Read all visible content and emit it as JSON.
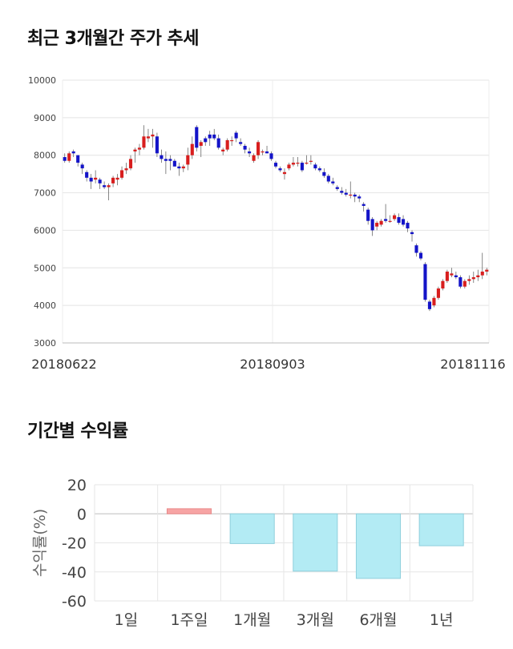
{
  "titles": {
    "price_trend": "최근 3개월간 주가 추세",
    "returns": "기간별 수익률"
  },
  "colors": {
    "up": "#d81e1e",
    "down": "#1414c8",
    "positive_bar": "#f7a4a4",
    "negative_bar": "#b3ebf4",
    "negative_bar_edge": "#8fcfdc"
  },
  "chart_data": [
    {
      "type": "candlestick",
      "title": "최근 3개월간 주가 추세",
      "ylim": [
        3000,
        10000
      ],
      "yticks": [
        3000,
        4000,
        5000,
        6000,
        7000,
        8000,
        9000,
        10000
      ],
      "xtick_labels": [
        "20180622",
        "20180903",
        "20181116"
      ],
      "grid": true,
      "ohlc": [
        [
          7950,
          8050,
          7800,
          7850
        ],
        [
          7850,
          8100,
          7800,
          8050
        ],
        [
          8100,
          8150,
          7950,
          8050
        ],
        [
          8000,
          8000,
          7700,
          7800
        ],
        [
          7750,
          7800,
          7500,
          7650
        ],
        [
          7550,
          7600,
          7300,
          7400
        ],
        [
          7400,
          7500,
          7100,
          7300
        ],
        [
          7350,
          7600,
          7250,
          7400
        ],
        [
          7350,
          7400,
          7100,
          7250
        ],
        [
          7200,
          7300,
          7100,
          7150
        ],
        [
          7150,
          7250,
          6800,
          7200
        ],
        [
          7250,
          7450,
          7150,
          7400
        ],
        [
          7350,
          7500,
          7200,
          7400
        ],
        [
          7400,
          7700,
          7350,
          7600
        ],
        [
          7600,
          7800,
          7500,
          7650
        ],
        [
          7650,
          8000,
          7600,
          7900
        ],
        [
          8100,
          8200,
          7800,
          8150
        ],
        [
          8150,
          8300,
          8000,
          8200
        ],
        [
          8200,
          8800,
          8150,
          8500
        ],
        [
          8450,
          8700,
          8350,
          8500
        ],
        [
          8500,
          8700,
          8200,
          8550
        ],
        [
          8500,
          8600,
          7950,
          8050
        ],
        [
          8000,
          8150,
          7800,
          7900
        ],
        [
          7900,
          8100,
          7500,
          7850
        ],
        [
          7900,
          8000,
          7600,
          7850
        ],
        [
          7850,
          7900,
          7700,
          7700
        ],
        [
          7700,
          7800,
          7450,
          7650
        ],
        [
          7650,
          7750,
          7550,
          7700
        ],
        [
          7750,
          8200,
          7600,
          8000
        ],
        [
          8000,
          8500,
          7900,
          8300
        ],
        [
          8750,
          8800,
          8100,
          8200
        ],
        [
          8250,
          8400,
          7950,
          8350
        ],
        [
          8450,
          8500,
          8250,
          8350
        ],
        [
          8550,
          8650,
          8250,
          8450
        ],
        [
          8550,
          8700,
          8400,
          8450
        ],
        [
          8450,
          8550,
          8150,
          8200
        ],
        [
          8100,
          8200,
          8000,
          8150
        ],
        [
          8150,
          8450,
          8100,
          8400
        ],
        [
          8400,
          8500,
          8250,
          8400
        ],
        [
          8600,
          8650,
          8350,
          8450
        ],
        [
          8350,
          8450,
          8250,
          8300
        ],
        [
          8250,
          8300,
          8050,
          8150
        ],
        [
          8100,
          8200,
          7950,
          8050
        ],
        [
          7850,
          8050,
          7800,
          8000
        ],
        [
          8000,
          8400,
          7900,
          8350
        ],
        [
          8100,
          8150,
          8000,
          8100
        ],
        [
          8100,
          8250,
          8050,
          8050
        ],
        [
          8050,
          8100,
          7850,
          7900
        ],
        [
          7800,
          7850,
          7650,
          7700
        ],
        [
          7650,
          7700,
          7550,
          7600
        ],
        [
          7500,
          7650,
          7350,
          7550
        ],
        [
          7650,
          7800,
          7600,
          7750
        ],
        [
          7750,
          7950,
          7700,
          7800
        ],
        [
          7800,
          7950,
          7700,
          7800
        ],
        [
          7800,
          7850,
          7550,
          7600
        ],
        [
          7800,
          8000,
          7750,
          7800
        ],
        [
          7850,
          8000,
          7750,
          7850
        ],
        [
          7750,
          7800,
          7600,
          7650
        ],
        [
          7650,
          7700,
          7550,
          7600
        ],
        [
          7550,
          7650,
          7400,
          7450
        ],
        [
          7450,
          7500,
          7250,
          7300
        ],
        [
          7300,
          7400,
          7200,
          7250
        ],
        [
          7150,
          7200,
          7050,
          7100
        ],
        [
          7050,
          7150,
          6950,
          7000
        ],
        [
          7000,
          7100,
          6900,
          6950
        ],
        [
          6950,
          7300,
          6850,
          6950
        ],
        [
          6950,
          7000,
          6750,
          6900
        ],
        [
          6900,
          6950,
          6750,
          6850
        ],
        [
          6700,
          6750,
          6500,
          6650
        ],
        [
          6550,
          6600,
          6150,
          6250
        ],
        [
          6300,
          6350,
          5850,
          6000
        ],
        [
          6100,
          6250,
          6000,
          6200
        ],
        [
          6150,
          6300,
          6100,
          6250
        ],
        [
          6300,
          6700,
          6200,
          6250
        ],
        [
          6250,
          6400,
          6200,
          6250
        ],
        [
          6300,
          6450,
          6250,
          6400
        ],
        [
          6350,
          6450,
          6150,
          6200
        ],
        [
          6300,
          6400,
          6100,
          6150
        ],
        [
          6200,
          6250,
          5950,
          6050
        ],
        [
          5950,
          6000,
          5700,
          5900
        ],
        [
          5600,
          5650,
          5300,
          5400
        ],
        [
          5400,
          5450,
          5200,
          5250
        ],
        [
          5100,
          5150,
          4100,
          4150
        ],
        [
          4100,
          4150,
          3850,
          3900
        ],
        [
          4000,
          4250,
          3950,
          4200
        ],
        [
          4200,
          4500,
          4150,
          4450
        ],
        [
          4450,
          4700,
          4400,
          4650
        ],
        [
          4650,
          4950,
          4600,
          4900
        ],
        [
          4800,
          5000,
          4750,
          4850
        ],
        [
          4800,
          4900,
          4700,
          4750
        ],
        [
          4750,
          4800,
          4450,
          4500
        ],
        [
          4500,
          4700,
          4450,
          4650
        ],
        [
          4650,
          4800,
          4550,
          4700
        ],
        [
          4700,
          4900,
          4600,
          4750
        ],
        [
          4750,
          4950,
          4650,
          4800
        ],
        [
          4800,
          5400,
          4700,
          4900
        ],
        [
          4900,
          5000,
          4800,
          4950
        ]
      ]
    },
    {
      "type": "bar",
      "title": "기간별 수익률",
      "categories": [
        "1일",
        "1주일",
        "1개월",
        "3개월",
        "6개월",
        "1년"
      ],
      "values": [
        0,
        3.5,
        -20.5,
        -39.5,
        -44.5,
        -22.0
      ],
      "ylabel": "수익률(%)",
      "ylim": [
        -60,
        20
      ],
      "yticks": [
        20,
        0,
        -20,
        -40,
        -60
      ],
      "grid": true
    }
  ]
}
